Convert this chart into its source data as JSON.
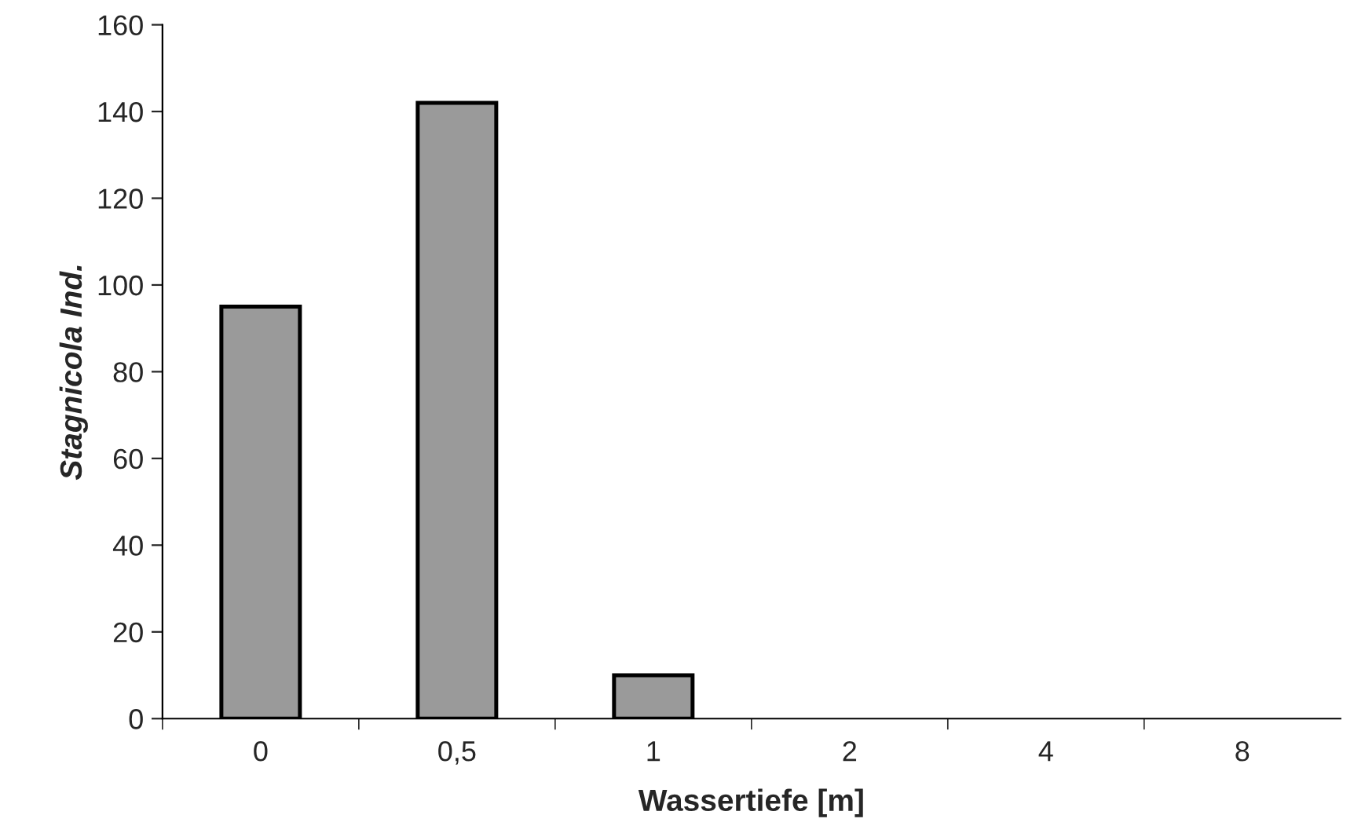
{
  "chart_data": {
    "type": "bar",
    "xlabel": "Wassertiefe [m]",
    "ylabel": "Stagnicola Ind.",
    "categories": [
      "0",
      "0,5",
      "1",
      "2",
      "4",
      "8"
    ],
    "values": [
      95,
      142,
      10,
      0,
      0,
      0
    ],
    "color": "#9a9a9a",
    "ylim": [
      0,
      160
    ],
    "yticks": [
      0,
      20,
      40,
      60,
      80,
      100,
      120,
      140,
      160
    ],
    "grid": false,
    "legend": false
  }
}
